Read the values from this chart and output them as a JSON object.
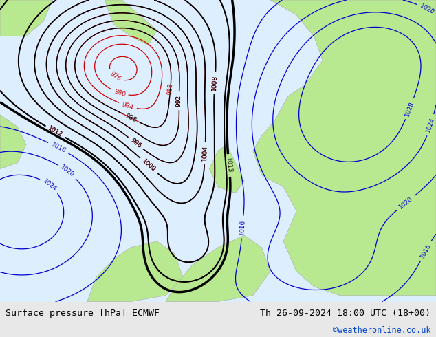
{
  "title_left": "Surface pressure [hPa] ECMWF",
  "title_right": "Th 26-09-2024 18:00 UTC (18+00)",
  "copyright": "©weatheronline.co.uk",
  "bg_color_land": "#b8e890",
  "bg_color_sea": "#ddeeff",
  "bg_color_bottom": "#e8e8e8",
  "text_color_left": "#000000",
  "text_color_right": "#000000",
  "text_color_copyright": "#0044cc",
  "font_size_title": 9.5,
  "font_size_copyright": 8.5,
  "contour_blue_color": "#0000cc",
  "contour_red_color": "#cc0000",
  "contour_black_color": "#000000",
  "contour_black_thick": "#000000"
}
